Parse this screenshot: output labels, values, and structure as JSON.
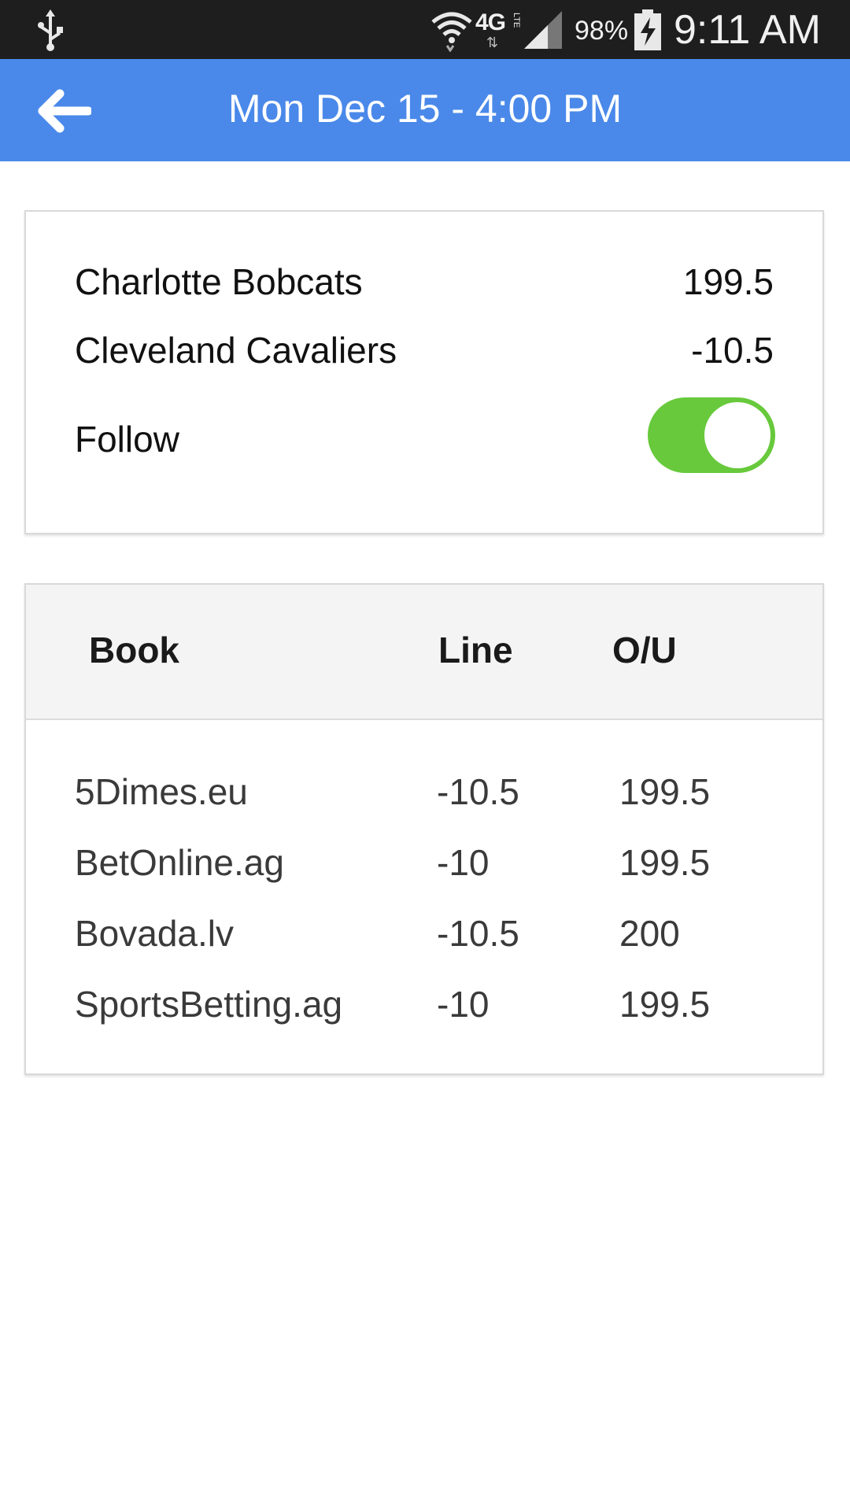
{
  "status_bar": {
    "network": "4G",
    "network_sub": "LTE",
    "battery_percent": "98%",
    "time": "9:11 AM",
    "icons": [
      "usb-icon",
      "wifi-icon",
      "signal-icon",
      "battery-charging-icon"
    ]
  },
  "app_bar": {
    "title": "Mon Dec 15 - 4:00 PM",
    "back_icon": "back-arrow-icon",
    "color": "#4a89ea"
  },
  "game": {
    "teams": [
      {
        "name": "Charlotte Bobcats",
        "value": "199.5"
      },
      {
        "name": "Cleveland Cavaliers",
        "value": "-10.5"
      }
    ],
    "follow_label": "Follow",
    "follow_on": true,
    "toggle_color": "#67c93b"
  },
  "lines_table": {
    "headers": {
      "book": "Book",
      "line": "Line",
      "ou": "O/U"
    },
    "rows": [
      {
        "book": "5Dimes.eu",
        "line": "-10.5",
        "ou": "199.5"
      },
      {
        "book": "BetOnline.ag",
        "line": "-10",
        "ou": "199.5"
      },
      {
        "book": "Bovada.lv",
        "line": "-10.5",
        "ou": "200"
      },
      {
        "book": "SportsBetting.ag",
        "line": "-10",
        "ou": "199.5"
      }
    ]
  }
}
